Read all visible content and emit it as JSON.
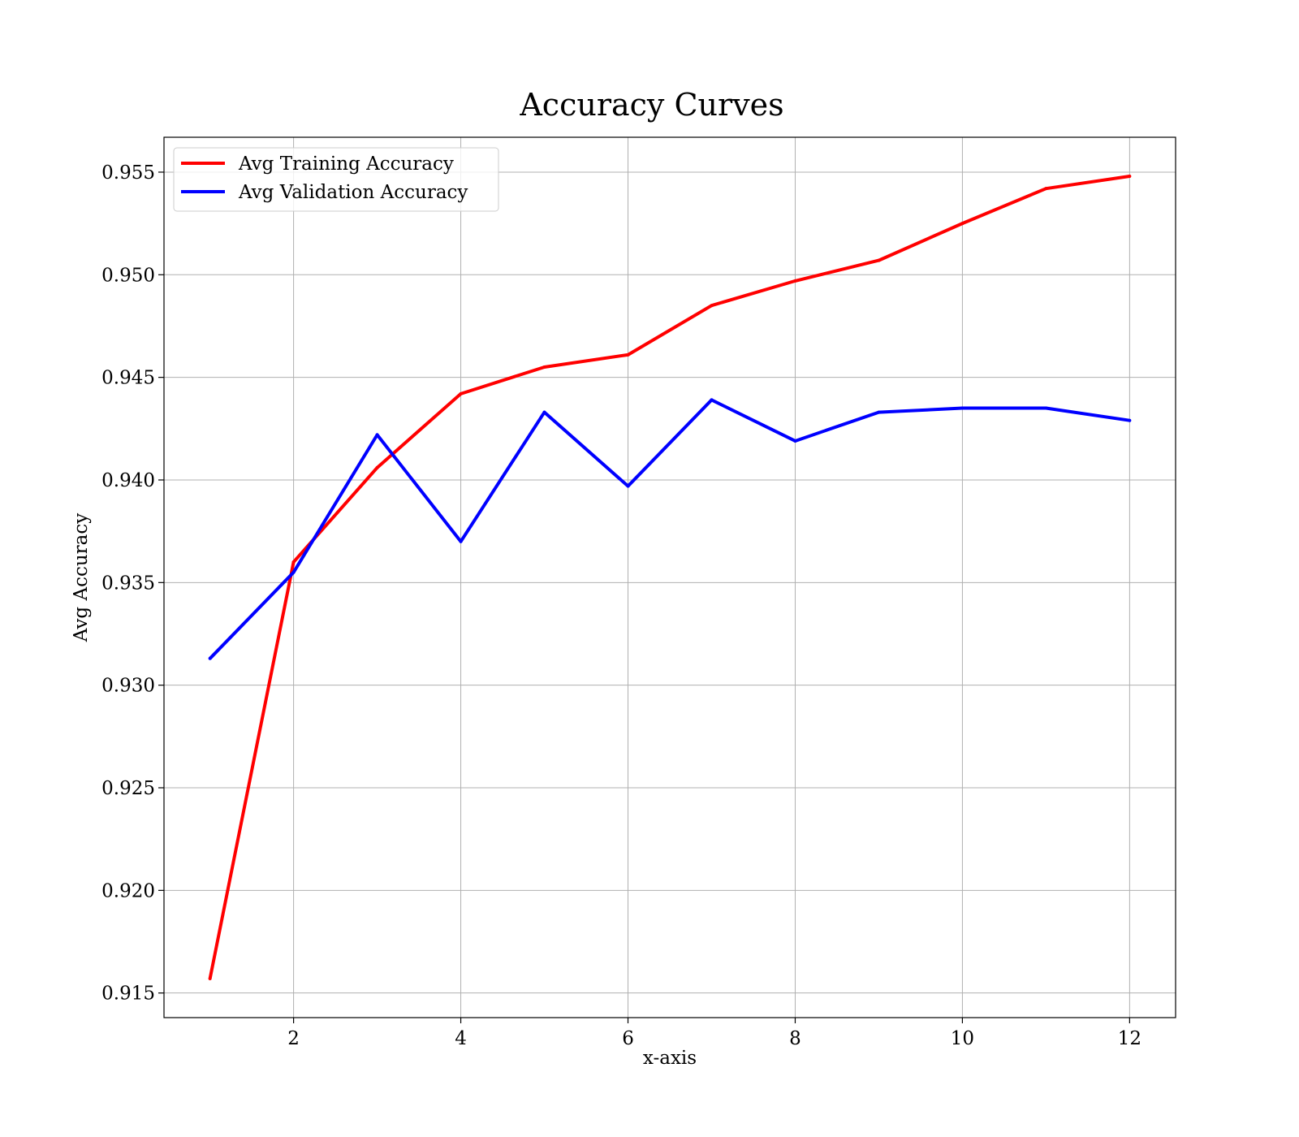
{
  "chart_data": {
    "type": "line",
    "title": "Accuracy Curves",
    "xlabel": "x-axis",
    "ylabel": "Avg Accuracy",
    "x": [
      1,
      2,
      3,
      4,
      5,
      6,
      7,
      8,
      9,
      10,
      11,
      12
    ],
    "xlim": [
      0.45,
      12.55
    ],
    "ylim": [
      0.9138,
      0.9567
    ],
    "xticks": [
      2,
      4,
      6,
      8,
      10,
      12
    ],
    "yticks": [
      0.915,
      0.92,
      0.925,
      0.93,
      0.935,
      0.94,
      0.945,
      0.95,
      0.955
    ],
    "xtick_labels": [
      "2",
      "4",
      "6",
      "8",
      "10",
      "12"
    ],
    "ytick_labels": [
      "0.915",
      "0.920",
      "0.925",
      "0.930",
      "0.935",
      "0.940",
      "0.945",
      "0.950",
      "0.955"
    ],
    "grid": true,
    "legend_position": "top-left",
    "series": [
      {
        "name": "Avg Training Accuracy",
        "color": "#ff0000",
        "values": [
          0.9157,
          0.936,
          0.9406,
          0.9442,
          0.9455,
          0.9461,
          0.9485,
          0.9497,
          0.9507,
          0.9525,
          0.9542,
          0.9548
        ]
      },
      {
        "name": "Avg Validation Accuracy",
        "color": "#0000ff",
        "values": [
          0.9313,
          0.9355,
          0.9422,
          0.937,
          0.9433,
          0.9397,
          0.9439,
          0.9419,
          0.9433,
          0.9435,
          0.9435,
          0.9429
        ]
      }
    ]
  }
}
